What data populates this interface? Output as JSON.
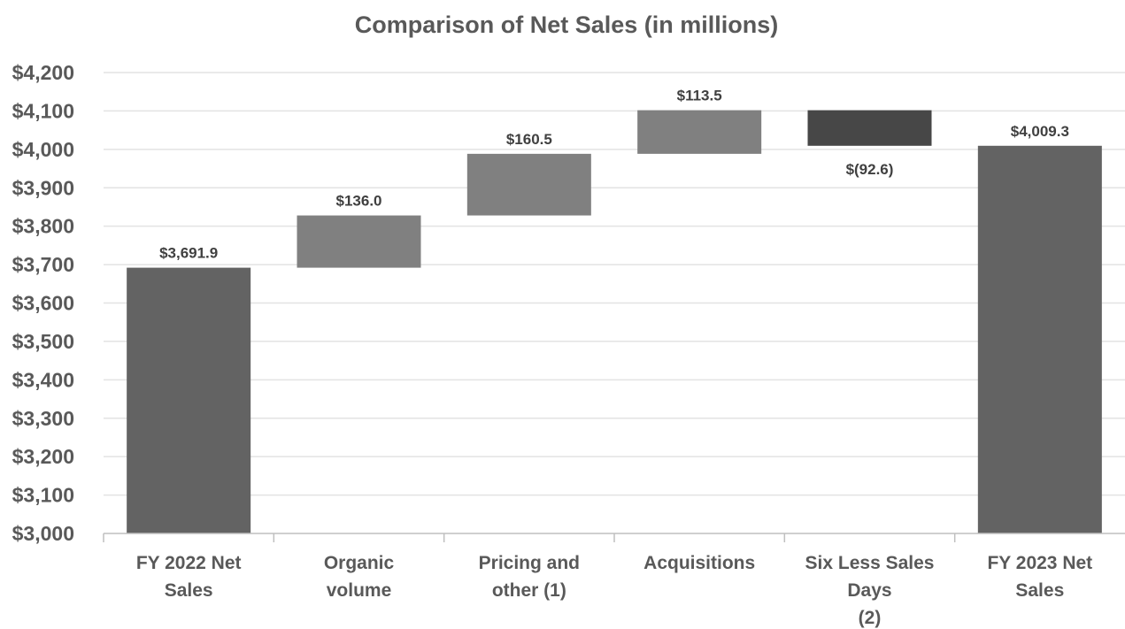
{
  "chart_data": {
    "type": "bar",
    "subtype": "waterfall",
    "title": "Comparison of Net Sales (in millions)",
    "xlabel": "",
    "ylabel": "",
    "ylim": [
      3000,
      4200
    ],
    "ytick_step": 100,
    "ytick_labels": [
      "$3,000",
      "$3,100",
      "$3,200",
      "$3,300",
      "$3,400",
      "$3,500",
      "$3,600",
      "$3,700",
      "$3,800",
      "$3,900",
      "$4,000",
      "$4,100",
      "$4,200"
    ],
    "grid": true,
    "legend": "none",
    "categories": [
      [
        "FY 2022 Net",
        "Sales"
      ],
      [
        "Organic",
        "volume"
      ],
      [
        "Pricing and",
        "other (1)"
      ],
      [
        "Acquisitions"
      ],
      [
        "Six Less Sales",
        "Days",
        "(2)"
      ],
      [
        "FY 2023 Net",
        "Sales"
      ]
    ],
    "values": [
      3691.9,
      136.0,
      160.5,
      113.5,
      -92.6,
      4009.3
    ],
    "kinds": [
      "total",
      "delta",
      "delta",
      "delta",
      "delta",
      "total"
    ],
    "data_labels": [
      "$3,691.9",
      "$136.0",
      "$160.5",
      "$113.5",
      "$(92.6)",
      "$4,009.3"
    ],
    "colors": {
      "total": "#636363",
      "increase": "#808080",
      "decrease": "#474747"
    }
  }
}
